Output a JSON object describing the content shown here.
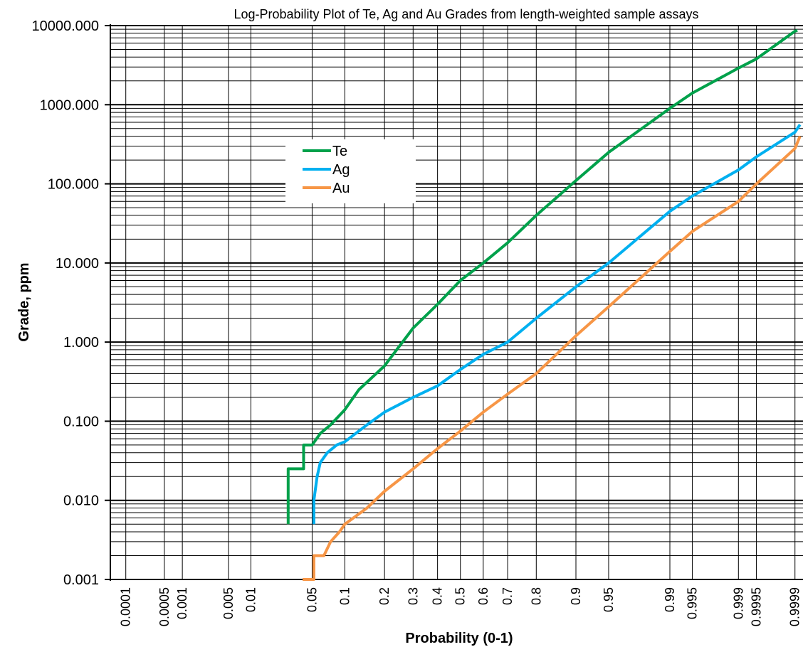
{
  "chart_data": {
    "type": "line",
    "title": "Log-Probability Plot of Te, Ag and Au Grades from length-weighted sample assays",
    "xlabel": "Probability (0-1)",
    "ylabel": "Grade, ppm",
    "y_scale": "log",
    "x_scale": "probability",
    "ylim": [
      0.001,
      10000
    ],
    "y_ticks": [
      {
        "value": 0.001,
        "label": "0.001"
      },
      {
        "value": 0.01,
        "label": "0.010"
      },
      {
        "value": 0.1,
        "label": "0.100"
      },
      {
        "value": 1,
        "label": "1.000"
      },
      {
        "value": 10,
        "label": "10.000"
      },
      {
        "value": 100,
        "label": "100.000"
      },
      {
        "value": 1000,
        "label": "1000.000"
      },
      {
        "value": 10000,
        "label": "10000.000"
      }
    ],
    "x_ticks": [
      {
        "value": 0.0001,
        "label": "0.0001"
      },
      {
        "value": 0.0005,
        "label": "0.0005"
      },
      {
        "value": 0.001,
        "label": "0.001"
      },
      {
        "value": 0.005,
        "label": "0.005"
      },
      {
        "value": 0.01,
        "label": "0.01"
      },
      {
        "value": 0.05,
        "label": "0.05"
      },
      {
        "value": 0.1,
        "label": "0.1"
      },
      {
        "value": 0.2,
        "label": "0.2"
      },
      {
        "value": 0.3,
        "label": "0.3"
      },
      {
        "value": 0.4,
        "label": "0.4"
      },
      {
        "value": 0.5,
        "label": "0.5"
      },
      {
        "value": 0.6,
        "label": "0.6"
      },
      {
        "value": 0.7,
        "label": "0.7"
      },
      {
        "value": 0.8,
        "label": "0.8"
      },
      {
        "value": 0.9,
        "label": "0.9"
      },
      {
        "value": 0.95,
        "label": "0.95"
      },
      {
        "value": 0.99,
        "label": "0.99"
      },
      {
        "value": 0.995,
        "label": "0.995"
      },
      {
        "value": 0.999,
        "label": "0.999"
      },
      {
        "value": 0.9995,
        "label": "0.9995"
      },
      {
        "value": 0.9999,
        "label": "0.9999"
      }
    ],
    "grid": true,
    "legend_position": "upper-center",
    "series": [
      {
        "name": "Te",
        "color": "#00a14b",
        "points": [
          [
            0.028,
            0.005
          ],
          [
            0.028,
            0.025
          ],
          [
            0.041,
            0.025
          ],
          [
            0.041,
            0.05
          ],
          [
            0.05,
            0.05
          ],
          [
            0.06,
            0.07
          ],
          [
            0.075,
            0.09
          ],
          [
            0.1,
            0.14
          ],
          [
            0.13,
            0.25
          ],
          [
            0.2,
            0.5
          ],
          [
            0.3,
            1.5
          ],
          [
            0.4,
            3
          ],
          [
            0.5,
            6
          ],
          [
            0.6,
            10
          ],
          [
            0.7,
            18
          ],
          [
            0.8,
            40
          ],
          [
            0.9,
            110
          ],
          [
            0.95,
            250
          ],
          [
            0.99,
            900
          ],
          [
            0.995,
            1400
          ],
          [
            0.999,
            2900
          ],
          [
            0.9995,
            3800
          ],
          [
            0.9999,
            8500
          ],
          [
            0.99991,
            8700
          ]
        ]
      },
      {
        "name": "Ag",
        "color": "#00b0f0",
        "points": [
          [
            0.052,
            0.005
          ],
          [
            0.052,
            0.01
          ],
          [
            0.056,
            0.02
          ],
          [
            0.06,
            0.03
          ],
          [
            0.07,
            0.04
          ],
          [
            0.085,
            0.05
          ],
          [
            0.1,
            0.055
          ],
          [
            0.15,
            0.09
          ],
          [
            0.2,
            0.13
          ],
          [
            0.3,
            0.2
          ],
          [
            0.4,
            0.28
          ],
          [
            0.5,
            0.45
          ],
          [
            0.6,
            0.7
          ],
          [
            0.7,
            1.0
          ],
          [
            0.8,
            2.0
          ],
          [
            0.9,
            5
          ],
          [
            0.95,
            10
          ],
          [
            0.99,
            45
          ],
          [
            0.995,
            70
          ],
          [
            0.999,
            150
          ],
          [
            0.9995,
            220
          ],
          [
            0.9999,
            450
          ],
          [
            0.99992,
            560
          ]
        ]
      },
      {
        "name": "Au",
        "color": "#f79646",
        "points": [
          [
            0.04,
            0.001
          ],
          [
            0.052,
            0.001
          ],
          [
            0.052,
            0.002
          ],
          [
            0.065,
            0.002
          ],
          [
            0.075,
            0.003
          ],
          [
            0.09,
            0.004
          ],
          [
            0.1,
            0.005
          ],
          [
            0.15,
            0.008
          ],
          [
            0.2,
            0.013
          ],
          [
            0.3,
            0.025
          ],
          [
            0.4,
            0.045
          ],
          [
            0.5,
            0.075
          ],
          [
            0.6,
            0.13
          ],
          [
            0.7,
            0.22
          ],
          [
            0.8,
            0.4
          ],
          [
            0.9,
            1.2
          ],
          [
            0.95,
            2.8
          ],
          [
            0.99,
            14
          ],
          [
            0.995,
            25
          ],
          [
            0.999,
            60
          ],
          [
            0.9995,
            100
          ],
          [
            0.9999,
            280
          ],
          [
            0.99992,
            400
          ]
        ]
      }
    ]
  }
}
